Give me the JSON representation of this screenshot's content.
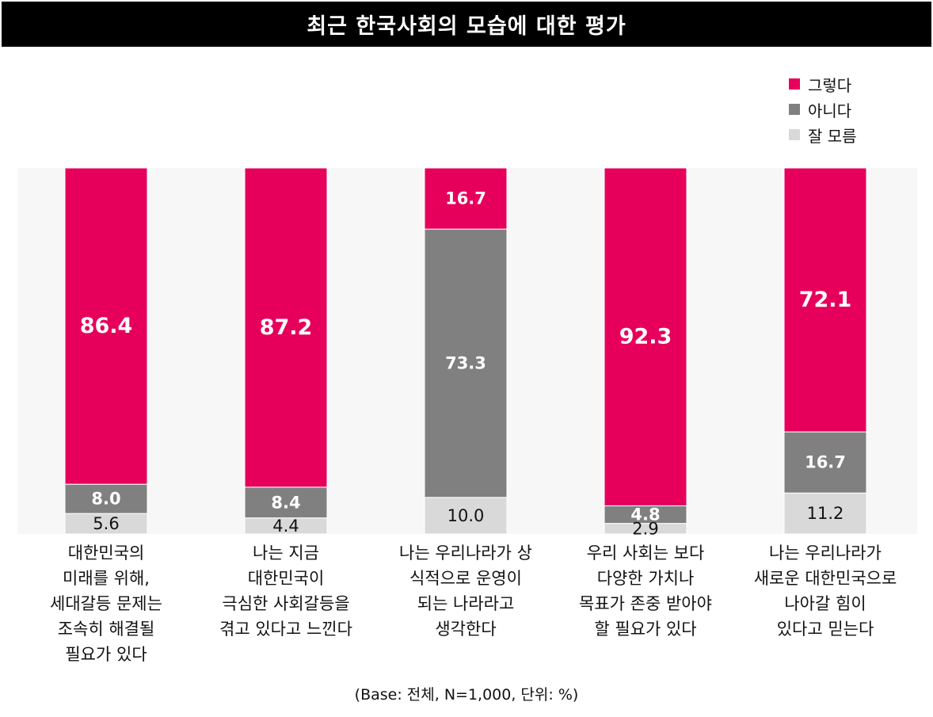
{
  "title": "최근 한국사회의 모습에 대한 평가",
  "footnote": "(Base: 전체, N=1,000, 단위: %)",
  "legend": [
    {
      "label": "그렇다",
      "color": "#E6005C"
    },
    {
      "label": "아니다",
      "color": "#808080"
    },
    {
      "label": "잘 모름",
      "color": "#D9D9D9"
    }
  ],
  "chart_data": {
    "type": "bar",
    "stacked": true,
    "orientation": "vertical",
    "ylim": [
      0,
      100
    ],
    "grid": false,
    "legend_position": "top-right",
    "categories": [
      "대한민국의\n미래를 위해,\n세대갈등 문제는\n조속히 해결될\n필요가 있다",
      "나는 지금\n대한민국이\n극심한 사회갈등을\n겪고 있다고 느낀다",
      "나는 우리나라가 상\n식적으로 운영이\n되는 나라라고\n생각한다",
      "우리 사회는 보다\n다양한 가치나\n목표가 존중 받아야\n할 필요가 있다",
      "나는 우리나라가\n새로운 대한민국으로\n나아갈 힘이\n있다고 믿는다"
    ],
    "series": [
      {
        "name": "그렇다",
        "color": "#E6005C",
        "label_color": "#FFFFFF",
        "values": [
          86.4,
          87.2,
          16.7,
          92.3,
          72.1
        ]
      },
      {
        "name": "아니다",
        "color": "#808080",
        "label_color": "#FFFFFF",
        "values": [
          8.0,
          8.4,
          73.3,
          4.8,
          16.7
        ]
      },
      {
        "name": "잘 모름",
        "color": "#D9D9D9",
        "label_color": "#111111",
        "values": [
          5.6,
          4.4,
          10.0,
          2.9,
          11.2
        ]
      }
    ]
  }
}
